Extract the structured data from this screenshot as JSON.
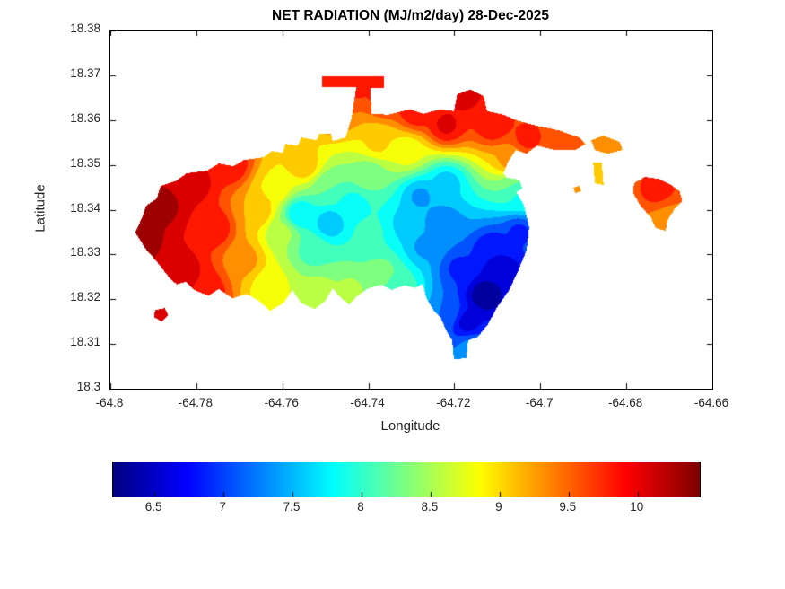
{
  "chart_data": {
    "type": "filled-contour-map",
    "title": "NET RADIATION (MJ/m2/day) 28-Dec-2025",
    "xlabel": "Longitude",
    "ylabel": "Latitude",
    "xlim": [
      -64.8,
      -64.66
    ],
    "ylim": [
      18.3,
      18.38
    ],
    "xtick_values": [
      -64.8,
      -64.78,
      -64.76,
      -64.74,
      -64.72,
      -64.7,
      -64.68,
      -64.66
    ],
    "xtick_labels": [
      "-64.8",
      "-64.78",
      "-64.76",
      "-64.74",
      "-64.72",
      "-64.7",
      "-64.68",
      "-64.66"
    ],
    "ytick_values": [
      18.3,
      18.31,
      18.32,
      18.33,
      18.34,
      18.35,
      18.36,
      18.37,
      18.38
    ],
    "ytick_labels": [
      "18.3",
      "18.31",
      "18.32",
      "18.33",
      "18.34",
      "18.35",
      "18.36",
      "18.37",
      "18.38"
    ],
    "colormap": "jet",
    "value_range": [
      6.2,
      10.45
    ],
    "contour_step": 0.25,
    "grid": false,
    "colorbar": {
      "orientation": "horizontal",
      "tick_values": [
        6.5,
        7,
        7.5,
        8,
        8.5,
        9,
        9.5,
        10
      ],
      "tick_labels": [
        "6.5",
        "7",
        "7.5",
        "8",
        "8.5",
        "9",
        "9.5",
        "10"
      ]
    },
    "regions": [
      {
        "name": "main-island",
        "polygon": [
          [
            -64.7942,
            18.3349
          ],
          [
            -64.7925,
            18.3385
          ],
          [
            -64.7917,
            18.3409
          ],
          [
            -64.7892,
            18.3425
          ],
          [
            -64.7883,
            18.3453
          ],
          [
            -64.7846,
            18.3465
          ],
          [
            -64.7823,
            18.3481
          ],
          [
            -64.7775,
            18.3487
          ],
          [
            -64.7748,
            18.3503
          ],
          [
            -64.7714,
            18.3497
          ],
          [
            -64.7689,
            18.3511
          ],
          [
            -64.7643,
            18.3517
          ],
          [
            -64.7624,
            18.3531
          ],
          [
            -64.7599,
            18.3527
          ],
          [
            -64.7593,
            18.3547
          ],
          [
            -64.7564,
            18.3543
          ],
          [
            -64.7556,
            18.3561
          ],
          [
            -64.752,
            18.3555
          ],
          [
            -64.7514,
            18.3569
          ],
          [
            -64.7487,
            18.3569
          ],
          [
            -64.7483,
            18.3553
          ],
          [
            -64.7453,
            18.3561
          ],
          [
            -64.7439,
            18.3604
          ],
          [
            -64.7428,
            18.3674
          ],
          [
            -64.7508,
            18.3674
          ],
          [
            -64.7508,
            18.3698
          ],
          [
            -64.7364,
            18.3698
          ],
          [
            -64.7364,
            18.3672
          ],
          [
            -64.7395,
            18.3672
          ],
          [
            -64.7393,
            18.3614
          ],
          [
            -64.7353,
            18.3612
          ],
          [
            -64.7303,
            18.3624
          ],
          [
            -64.7272,
            18.3614
          ],
          [
            -64.7234,
            18.3624
          ],
          [
            -64.7201,
            18.362
          ],
          [
            -64.7193,
            18.3658
          ],
          [
            -64.7163,
            18.3668
          ],
          [
            -64.7132,
            18.3654
          ],
          [
            -64.7124,
            18.362
          ],
          [
            -64.7086,
            18.3612
          ],
          [
            -64.7051,
            18.3598
          ],
          [
            -64.7007,
            18.3587
          ],
          [
            -64.6957,
            18.3577
          ],
          [
            -64.6909,
            18.3561
          ],
          [
            -64.6894,
            18.3547
          ],
          [
            -64.6919,
            18.3533
          ],
          [
            -64.6967,
            18.3533
          ],
          [
            -64.7007,
            18.3543
          ],
          [
            -64.7032,
            18.3525
          ],
          [
            -64.7057,
            18.3533
          ],
          [
            -64.7074,
            18.3509
          ],
          [
            -64.7086,
            18.3481
          ],
          [
            -64.7065,
            18.3455
          ],
          [
            -64.7038,
            18.3409
          ],
          [
            -64.7026,
            18.3361
          ],
          [
            -64.7032,
            18.3309
          ],
          [
            -64.7051,
            18.3265
          ],
          [
            -64.7072,
            18.3221
          ],
          [
            -64.7101,
            18.3181
          ],
          [
            -64.7122,
            18.3144
          ],
          [
            -64.7145,
            18.3116
          ],
          [
            -64.7168,
            18.3108
          ],
          [
            -64.7172,
            18.3068
          ],
          [
            -64.7201,
            18.3066
          ],
          [
            -64.7205,
            18.3108
          ],
          [
            -64.7218,
            18.3128
          ],
          [
            -64.7232,
            18.316
          ],
          [
            -64.7247,
            18.3174
          ],
          [
            -64.7264,
            18.32
          ],
          [
            -64.7274,
            18.3235
          ],
          [
            -64.7291,
            18.3225
          ],
          [
            -64.7316,
            18.3231
          ],
          [
            -64.7345,
            18.3221
          ],
          [
            -64.737,
            18.3233
          ],
          [
            -64.7403,
            18.3223
          ],
          [
            -64.7428,
            18.3205
          ],
          [
            -64.7445,
            18.3188
          ],
          [
            -64.7466,
            18.3205
          ],
          [
            -64.7483,
            18.3225
          ],
          [
            -64.75,
            18.3196
          ],
          [
            -64.7525,
            18.3178
          ],
          [
            -64.7556,
            18.3191
          ],
          [
            -64.7577,
            18.3221
          ],
          [
            -64.7598,
            18.3191
          ],
          [
            -64.7629,
            18.3174
          ],
          [
            -64.7654,
            18.3196
          ],
          [
            -64.7683,
            18.3212
          ],
          [
            -64.7716,
            18.3202
          ],
          [
            -64.7748,
            18.3223
          ],
          [
            -64.7771,
            18.3208
          ],
          [
            -64.7802,
            18.3219
          ],
          [
            -64.7825,
            18.3239
          ],
          [
            -64.7846,
            18.3233
          ],
          [
            -64.7867,
            18.3253
          ],
          [
            -64.7883,
            18.3273
          ],
          [
            -64.79,
            18.3293
          ],
          [
            -64.7917,
            18.3311
          ],
          [
            -64.7931,
            18.3333
          ]
        ]
      },
      {
        "name": "southwest-islet",
        "polygon": [
          [
            -64.7896,
            18.3176
          ],
          [
            -64.7873,
            18.318
          ],
          [
            -64.7866,
            18.3164
          ],
          [
            -64.7881,
            18.315
          ],
          [
            -64.7898,
            18.316
          ]
        ]
      },
      {
        "name": "green-islet",
        "polygon": [
          [
            -64.709,
            18.3457
          ],
          [
            -64.7076,
            18.3471
          ],
          [
            -64.7049,
            18.3467
          ],
          [
            -64.7042,
            18.3447
          ],
          [
            -64.7065,
            18.3435
          ],
          [
            -64.7086,
            18.3443
          ]
        ]
      },
      {
        "name": "northeast-islet-chain",
        "polygon": [
          [
            -64.6882,
            18.3555
          ],
          [
            -64.6853,
            18.3565
          ],
          [
            -64.6815,
            18.3551
          ],
          [
            -64.6809,
            18.3533
          ],
          [
            -64.6844,
            18.3525
          ],
          [
            -64.6873,
            18.3533
          ]
        ]
      },
      {
        "name": "northeast-islet-south",
        "polygon": [
          [
            -64.6877,
            18.3505
          ],
          [
            -64.6857,
            18.3505
          ],
          [
            -64.6853,
            18.3455
          ],
          [
            -64.6873,
            18.3459
          ]
        ]
      },
      {
        "name": "small-cay",
        "polygon": [
          [
            -64.6923,
            18.3449
          ],
          [
            -64.6909,
            18.3453
          ],
          [
            -64.6905,
            18.3441
          ],
          [
            -64.6919,
            18.3437
          ]
        ]
      },
      {
        "name": "east-islet",
        "polygon": [
          [
            -64.6782,
            18.3459
          ],
          [
            -64.6757,
            18.3473
          ],
          [
            -64.6726,
            18.3469
          ],
          [
            -64.6699,
            18.3457
          ],
          [
            -64.6676,
            18.3441
          ],
          [
            -64.667,
            18.3419
          ],
          [
            -64.6688,
            18.3401
          ],
          [
            -64.6703,
            18.3379
          ],
          [
            -64.6709,
            18.3353
          ],
          [
            -64.6732,
            18.3359
          ],
          [
            -64.6742,
            18.3381
          ],
          [
            -64.6767,
            18.3409
          ],
          [
            -64.6784,
            18.3437
          ]
        ]
      }
    ],
    "samples": [
      [
        -64.794,
        18.334,
        10.45
      ],
      [
        -64.788,
        18.341,
        10.3
      ],
      [
        -64.781,
        18.346,
        10.1
      ],
      [
        -64.784,
        18.326,
        10.2
      ],
      [
        -64.776,
        18.336,
        9.9
      ],
      [
        -64.772,
        18.35,
        9.9
      ],
      [
        -64.778,
        18.322,
        9.9
      ],
      [
        -64.788,
        18.316,
        10.2
      ],
      [
        -64.766,
        18.34,
        9.2
      ],
      [
        -64.769,
        18.329,
        9.3
      ],
      [
        -64.762,
        18.345,
        8.9
      ],
      [
        -64.76,
        18.335,
        8.5
      ],
      [
        -64.763,
        18.323,
        8.8
      ],
      [
        -64.755,
        18.35,
        9.1
      ],
      [
        -64.756,
        18.339,
        7.7
      ],
      [
        -64.749,
        18.337,
        7.5
      ],
      [
        -64.753,
        18.331,
        8.1
      ],
      [
        -64.744,
        18.341,
        7.8
      ],
      [
        -64.74,
        18.335,
        8.0
      ],
      [
        -64.752,
        18.321,
        8.6
      ],
      [
        -64.744,
        18.322,
        8.5
      ],
      [
        -64.737,
        18.326,
        8.3
      ],
      [
        -64.74,
        18.348,
        8.3
      ],
      [
        -64.749,
        18.345,
        8.2
      ],
      [
        -64.748,
        18.362,
        9.5
      ],
      [
        -64.744,
        18.369,
        9.9
      ],
      [
        -64.749,
        18.3695,
        9.8
      ],
      [
        -64.736,
        18.365,
        9.8
      ],
      [
        -64.729,
        18.362,
        9.9
      ],
      [
        -64.722,
        18.359,
        10.0
      ],
      [
        -64.718,
        18.366,
        10.1
      ],
      [
        -64.711,
        18.359,
        9.9
      ],
      [
        -64.703,
        18.356,
        9.8
      ],
      [
        -64.694,
        18.354,
        9.6
      ],
      [
        -64.731,
        18.353,
        8.8
      ],
      [
        -64.738,
        18.355,
        9.0
      ],
      [
        -64.728,
        18.343,
        7.4
      ],
      [
        -64.723,
        18.337,
        7.2
      ],
      [
        -64.727,
        18.332,
        7.4
      ],
      [
        -64.731,
        18.337,
        7.6
      ],
      [
        -64.722,
        18.346,
        7.6
      ],
      [
        -64.713,
        18.321,
        6.25
      ],
      [
        -64.709,
        18.326,
        6.45
      ],
      [
        -64.717,
        18.315,
        6.6
      ],
      [
        -64.711,
        18.331,
        6.7
      ],
      [
        -64.705,
        18.335,
        6.9
      ],
      [
        -64.719,
        18.327,
        6.9
      ],
      [
        -64.716,
        18.309,
        7.3
      ],
      [
        -64.722,
        18.317,
        7.2
      ],
      [
        -64.704,
        18.343,
        7.8
      ],
      [
        -64.707,
        18.351,
        9.3
      ],
      [
        -64.733,
        18.323,
        8.1
      ],
      [
        -64.734,
        18.32,
        8.2
      ],
      [
        -64.706,
        18.3455,
        8.2
      ],
      [
        -64.685,
        18.3545,
        9.4
      ],
      [
        -64.6865,
        18.349,
        9.1
      ],
      [
        -64.691,
        18.3445,
        9.3
      ],
      [
        -64.673,
        18.345,
        9.8
      ],
      [
        -64.67,
        18.337,
        9.3
      ]
    ]
  }
}
